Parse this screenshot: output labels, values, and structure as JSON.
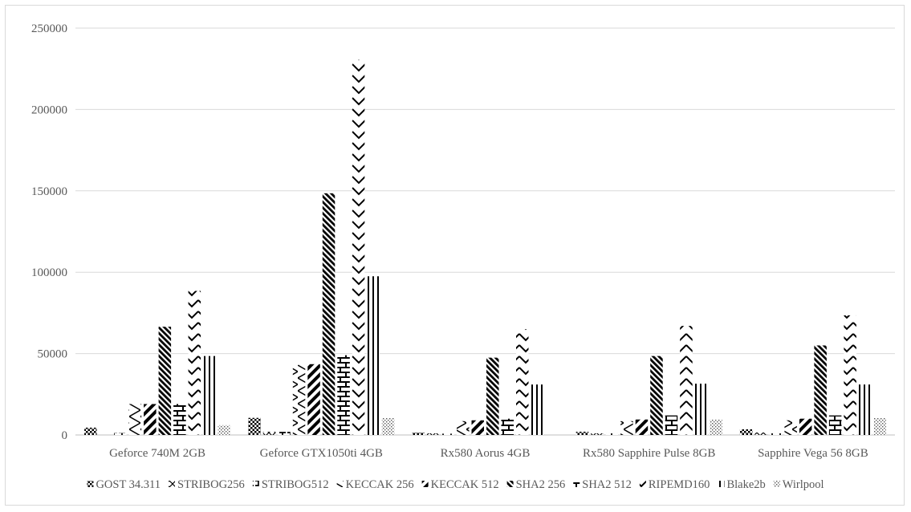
{
  "chart_data": {
    "type": "bar",
    "title": "",
    "xlabel": "",
    "ylabel": "",
    "ylim": [
      0,
      250000
    ],
    "yticks": [
      "0",
      "50000",
      "100000",
      "150000",
      "200000",
      "250000"
    ],
    "grid": true,
    "legend_position": "bottom",
    "categories": [
      "Geforce 740M 2GB",
      "Geforce GTX1050ti 4GB",
      "Rx580 Aorus 4GB",
      "Rx580 Sapphire Pulse 8GB",
      "Sapphire Vega 56 8GB"
    ],
    "series": [
      {
        "name": "GOST 34.311",
        "pattern": "dots",
        "values": [
          4500,
          10500,
          1500,
          2000,
          3500
        ]
      },
      {
        "name": "STRIBOG256",
        "pattern": "diamonds",
        "values": [
          0,
          2000,
          1000,
          1000,
          1500
        ]
      },
      {
        "name": "STRIBOG512",
        "pattern": "crosses",
        "values": [
          1200,
          2000,
          800,
          1000,
          1000
        ]
      },
      {
        "name": "KECCAK 256",
        "pattern": "zigzag",
        "values": [
          19000,
          43000,
          8500,
          8500,
          9000
        ]
      },
      {
        "name": "KECCAK 512",
        "pattern": "thick-diag",
        "values": [
          19000,
          43500,
          9000,
          9500,
          10000
        ]
      },
      {
        "name": "SHA2 256",
        "pattern": "dense-diag",
        "values": [
          66500,
          148500,
          47500,
          48500,
          55000
        ]
      },
      {
        "name": "SHA2 512",
        "pattern": "brick",
        "values": [
          19000,
          49000,
          10000,
          12000,
          12000
        ]
      },
      {
        "name": "RIPEMD160",
        "pattern": "zigzag-bold",
        "values": [
          88500,
          230500,
          65000,
          67000,
          73500
        ]
      },
      {
        "name": "Blake2b",
        "pattern": "vertical-lines",
        "values": [
          48500,
          97500,
          31000,
          31500,
          31000
        ]
      },
      {
        "name": "Wirlpool",
        "pattern": "light-dots",
        "values": [
          6000,
          10500,
          0,
          9500,
          10500
        ]
      }
    ]
  }
}
